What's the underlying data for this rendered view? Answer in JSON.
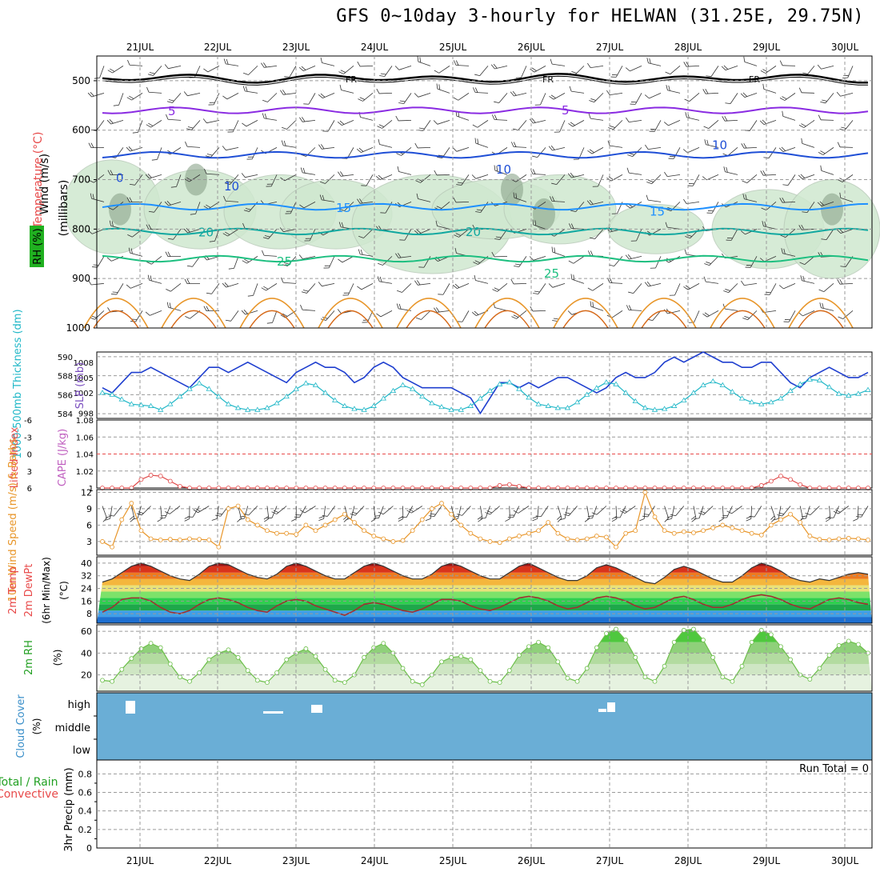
{
  "title": "GFS 0~10day 3-hourly for HELWAN (31.25E, 29.75N)",
  "dates": [
    "21JUL",
    "22JUL",
    "23JUL",
    "24JUL",
    "25JUL",
    "26JUL",
    "27JUL",
    "28JUL",
    "29JUL",
    "30JUL"
  ],
  "run_total_text": "Run Total = 0",
  "colors": {
    "grid": "#9a9a9a",
    "zero": "#e84a4a",
    "rh_fill": "#cfe8cf",
    "rh_dark": "#8aa38a",
    "iso5": "#8a2be2",
    "iso10": "#1f4fd6",
    "iso15": "#1e90ff",
    "iso20": "#10a8a0",
    "iso25": "#1dbf80",
    "iso30": "#e8962a",
    "iso35": "#c8186e",
    "fr": "#000000",
    "slp": "#1f3fcf",
    "thick": "#22b8c8",
    "cape": "#e04848",
    "wind": "#e8962a",
    "rh2m": "#6cbf4a",
    "cloud": "#6aaed6",
    "cloudpatch": "#ffffff"
  },
  "chart_data": [
    {
      "panel": "upper-air",
      "type": "line",
      "ylabels": [
        "Wind (m/s)",
        "Temperature (°C)",
        "RH (%)",
        "(millibars)"
      ],
      "yticks": [
        500,
        600,
        700,
        800,
        900,
        1000
      ],
      "ylim": [
        450,
        1000
      ],
      "isotherm_labels": [
        "5",
        "10",
        "15",
        "20",
        "25",
        "0",
        "FR"
      ],
      "isotherms": [
        {
          "name": "FR",
          "p": 495
        },
        {
          "name": "5",
          "p": 560
        },
        {
          "name": "10",
          "p": 650
        },
        {
          "name": "15",
          "p": 755
        },
        {
          "name": "20",
          "p": 805
        },
        {
          "name": "25",
          "p": 860
        }
      ]
    },
    {
      "panel": "thickness-slp",
      "type": "line",
      "ylabels": [
        "1000-500mb Thickness (dm)",
        "SLP (mb)"
      ],
      "yticks_left": [
        584,
        586,
        588,
        590
      ],
      "yticks_right": [
        998,
        1002,
        1005,
        1008
      ],
      "ylim_left": [
        583.5,
        590.5
      ],
      "ylim_right": [
        997,
        1010
      ],
      "series": [
        {
          "name": "SLP",
          "axis": "right",
          "values": [
            1003,
            1002,
            1004,
            1006,
            1006,
            1007,
            1006,
            1005,
            1004,
            1003,
            1005,
            1007,
            1007,
            1006,
            1007,
            1008,
            1007,
            1006,
            1005,
            1004,
            1006,
            1007,
            1008,
            1007,
            1007,
            1006,
            1004,
            1005,
            1007,
            1008,
            1007,
            1005,
            1004,
            1003,
            1003,
            1003,
            1003,
            1002,
            1001,
            998,
            1001,
            1004,
            1004,
            1003,
            1004,
            1003,
            1004,
            1005,
            1005,
            1004,
            1003,
            1002,
            1003,
            1005,
            1006,
            1005,
            1005,
            1006,
            1008,
            1009,
            1008,
            1009,
            1010,
            1009,
            1008,
            1008,
            1007,
            1007,
            1008,
            1008,
            1006,
            1004,
            1003,
            1005,
            1006,
            1007,
            1006,
            1005,
            1005,
            1006
          ]
        },
        {
          "name": "Thickness",
          "axis": "left",
          "values": [
            586.2,
            586.0,
            585.5,
            585.0,
            584.9,
            584.8,
            584.4,
            585.0,
            585.8,
            586.6,
            587.2,
            586.6,
            585.8,
            585.0,
            584.6,
            584.4,
            584.4,
            584.6,
            585.1,
            585.8,
            586.6,
            587.2,
            587.0,
            586.2,
            585.4,
            584.8,
            584.5,
            584.4,
            584.8,
            585.6,
            586.4,
            587.0,
            586.6,
            585.8,
            585.1,
            584.7,
            584.4,
            584.4,
            584.8,
            585.6,
            586.4,
            587.1,
            587.3,
            586.6,
            585.7,
            585.0,
            584.8,
            584.6,
            584.6,
            585.2,
            586.0,
            586.7,
            587.3,
            587.1,
            586.2,
            585.3,
            584.6,
            584.4,
            584.5,
            584.8,
            585.4,
            586.2,
            587.0,
            587.4,
            587.0,
            586.3,
            585.6,
            585.2,
            585.0,
            585.2,
            585.6,
            586.4,
            587.1,
            587.6,
            587.5,
            586.8,
            586.1,
            585.9,
            586.1,
            586.5
          ]
        }
      ]
    },
    {
      "panel": "stability",
      "type": "line",
      "ylabels": [
        "Lifted Index",
        "CAPE (J/kg)"
      ],
      "yticks_left": [
        "-6",
        "-3",
        "0",
        "3",
        "6"
      ],
      "yticks_right": [
        "1.08",
        "1.06",
        "1.04",
        "1.02",
        "1"
      ],
      "ylim_right": [
        1,
        1.08
      ],
      "series": [
        {
          "name": "CAPE",
          "values": [
            1,
            1,
            1,
            1,
            1.01,
            1.015,
            1.014,
            1.008,
            1.002,
            1,
            1,
            1,
            1,
            1,
            1,
            1,
            1,
            1,
            1,
            1,
            1,
            1,
            1,
            1,
            1,
            1,
            1,
            1,
            1,
            1,
            1,
            1,
            1,
            1,
            1,
            1,
            1,
            1,
            1,
            1,
            1,
            1.003,
            1.004,
            1.002,
            1,
            1,
            1,
            1,
            1,
            1,
            1,
            1,
            1,
            1,
            1,
            1,
            1,
            1,
            1,
            1,
            1,
            1,
            1,
            1,
            1,
            1,
            1,
            1,
            1.003,
            1.008,
            1.014,
            1.01,
            1.004,
            1,
            1,
            1,
            1,
            1,
            1,
            1
          ]
        }
      ]
    },
    {
      "panel": "wind10m",
      "type": "line",
      "ylabels": [
        "10m Wind Speed (m/s) & Barbs"
      ],
      "yticks": [
        3,
        6,
        9,
        12
      ],
      "ylim": [
        0.5,
        12.5
      ],
      "series": [
        {
          "name": "Speed",
          "values": [
            3,
            2,
            7,
            10,
            5,
            3.5,
            3.3,
            3.4,
            3.3,
            3.5,
            3.4,
            3.3,
            2,
            9,
            9.5,
            7,
            6,
            5,
            4.5,
            4.5,
            4.3,
            6,
            5,
            6,
            7,
            8,
            6.5,
            5,
            4,
            3.5,
            3,
            3.2,
            5,
            7,
            9,
            10,
            8,
            6,
            4.5,
            3.5,
            3,
            2.8,
            3.5,
            4,
            4.5,
            5,
            6.5,
            4.5,
            3.5,
            3.3,
            3.5,
            4,
            3.8,
            2,
            4.5,
            5,
            12,
            7.5,
            5,
            4.5,
            4.8,
            4.6,
            5,
            5.5,
            6,
            5.5,
            5,
            4.5,
            4.2,
            6,
            7,
            8,
            6.5,
            4,
            3.4,
            3.3,
            3.5,
            3.6,
            3.5,
            3.3
          ]
        }
      ]
    },
    {
      "panel": "temp2m",
      "type": "area",
      "ylabels": [
        "2m Temp",
        "2m DewPt",
        "(6hr Min/Max)",
        "(°C)"
      ],
      "yticks": [
        8,
        16,
        24,
        32,
        40
      ],
      "ylim": [
        2,
        44
      ],
      "series": [
        {
          "name": "2m Temp",
          "values": [
            28,
            30,
            34,
            38,
            40,
            38,
            35,
            32,
            30,
            29,
            33,
            38,
            40,
            39,
            36,
            33,
            31,
            30,
            33,
            38,
            40,
            38,
            35,
            32,
            30,
            30,
            34,
            38,
            40,
            38,
            35,
            32,
            30,
            30,
            33,
            38,
            40,
            38,
            35,
            32,
            30,
            30,
            34,
            38,
            40,
            37,
            34,
            31,
            29,
            29,
            32,
            37,
            39,
            37,
            34,
            31,
            28,
            27,
            31,
            36,
            38,
            36,
            33,
            30,
            28,
            28,
            32,
            37,
            40,
            38,
            35,
            31,
            29,
            28,
            30,
            29,
            31,
            33,
            34,
            33
          ]
        },
        {
          "name": "2m DewPt",
          "values": [
            9,
            12,
            17,
            18,
            18,
            16,
            12,
            9,
            8,
            10,
            14,
            17,
            18,
            17,
            15,
            12,
            10,
            9,
            13,
            16,
            17,
            16,
            13,
            11,
            9,
            7,
            10,
            14,
            15,
            14,
            12,
            10,
            9,
            11,
            14,
            17,
            17,
            16,
            13,
            11,
            10,
            12,
            15,
            18,
            19,
            18,
            16,
            13,
            11,
            12,
            15,
            18,
            19,
            18,
            16,
            13,
            11,
            12,
            15,
            18,
            19,
            17,
            14,
            12,
            12,
            14,
            17,
            19,
            20,
            19,
            17,
            14,
            12,
            11,
            14,
            17,
            18,
            17,
            15,
            14
          ]
        }
      ]
    },
    {
      "panel": "rh2m",
      "type": "area",
      "ylabels": [
        "2m RH",
        "(%)"
      ],
      "yticks": [
        20,
        40,
        60
      ],
      "ylim": [
        5,
        66
      ],
      "series": [
        {
          "name": "2m RH",
          "values": [
            15,
            14,
            25,
            35,
            44,
            49,
            45,
            30,
            18,
            14,
            22,
            34,
            40,
            43,
            36,
            24,
            15,
            13,
            22,
            34,
            40,
            44,
            37,
            25,
            15,
            13,
            20,
            36,
            45,
            49,
            40,
            26,
            14,
            11,
            20,
            32,
            36,
            37,
            34,
            24,
            14,
            13,
            24,
            38,
            46,
            50,
            45,
            32,
            17,
            14,
            26,
            45,
            58,
            62,
            52,
            36,
            18,
            14,
            28,
            50,
            61,
            62,
            52,
            36,
            18,
            14,
            28,
            50,
            61,
            57,
            46,
            34,
            20,
            16,
            26,
            38,
            47,
            51,
            48,
            40
          ]
        }
      ]
    },
    {
      "panel": "cloud",
      "type": "heatmap",
      "ylabels": [
        "Cloud Cover",
        "(%)"
      ],
      "levels": [
        "high",
        "middle",
        "low"
      ]
    },
    {
      "panel": "precip",
      "type": "bar",
      "ylabels": [
        "Total / Rain",
        "Convective",
        "3hr Precip (mm)"
      ],
      "yticks": [
        "0",
        "0.2",
        "0.4",
        "0.6",
        "0.8"
      ],
      "ylim": [
        0,
        0.95
      ],
      "values": []
    }
  ]
}
